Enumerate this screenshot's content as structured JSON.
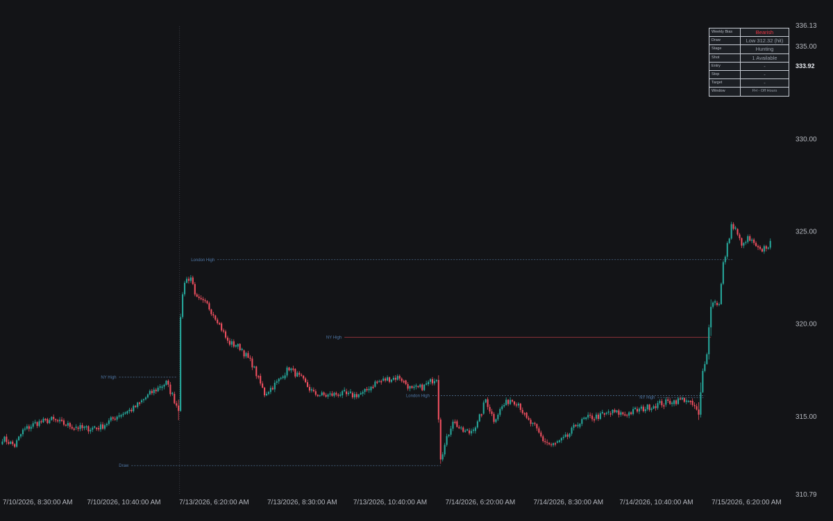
{
  "chart_data": {
    "type": "candlestick",
    "y_axis": {
      "range": [
        310.79,
        336.13
      ],
      "tick_labels": [
        {
          "value": 336.13,
          "label": "336.13"
        },
        {
          "value": 335.0,
          "label": "335.00"
        },
        {
          "value": 330.0,
          "label": "330.00"
        },
        {
          "value": 325.0,
          "label": "325.00"
        },
        {
          "value": 320.0,
          "label": "320.00"
        },
        {
          "value": 315.0,
          "label": "315.00"
        },
        {
          "value": 310.79,
          "label": "310.79"
        }
      ],
      "current_price": {
        "value": 333.92,
        "label": "333.92"
      }
    },
    "x_axis": {
      "tick_labels": [
        {
          "index": 0,
          "label": "7/10/2026, 8:30:00 AM"
        },
        {
          "index": 42,
          "label": "7/10/2026, 10:40:00 AM"
        },
        {
          "index": 87,
          "label": "7/13/2026, 6:20:00 AM"
        },
        {
          "index": 130,
          "label": "7/13/2026, 8:30:00 AM"
        },
        {
          "index": 172,
          "label": "7/13/2026, 10:40:00 AM"
        },
        {
          "index": 217,
          "label": "7/14/2026, 6:20:00 AM"
        },
        {
          "index": 260,
          "label": "7/14/2026, 8:30:00 AM"
        },
        {
          "index": 302,
          "label": "7/14/2026, 10:40:00 AM"
        },
        {
          "index": 347,
          "label": "7/15/2026, 6:20:00 AM"
        }
      ]
    },
    "session_marker_index": 86.5,
    "anchors": [
      {
        "i": 0,
        "p": 313.8
      },
      {
        "i": 6,
        "p": 313.4
      },
      {
        "i": 10,
        "p": 314.2
      },
      {
        "i": 16,
        "p": 314.6
      },
      {
        "i": 24,
        "p": 314.8
      },
      {
        "i": 32,
        "p": 314.5
      },
      {
        "i": 40,
        "p": 314.3
      },
      {
        "i": 48,
        "p": 314.4
      },
      {
        "i": 56,
        "p": 315.0
      },
      {
        "i": 64,
        "p": 315.4
      },
      {
        "i": 72,
        "p": 316.2
      },
      {
        "i": 80,
        "p": 316.8
      },
      {
        "i": 85,
        "p": 315.6
      },
      {
        "i": 86,
        "p": 315.4
      },
      {
        "i": 87,
        "p": 320.5
      },
      {
        "i": 89,
        "p": 322.3
      },
      {
        "i": 92,
        "p": 322.5
      },
      {
        "i": 95,
        "p": 321.3
      },
      {
        "i": 100,
        "p": 321.0
      },
      {
        "i": 105,
        "p": 320.2
      },
      {
        "i": 110,
        "p": 319.0
      },
      {
        "i": 116,
        "p": 318.7
      },
      {
        "i": 122,
        "p": 317.8
      },
      {
        "i": 128,
        "p": 316.2
      },
      {
        "i": 134,
        "p": 316.8
      },
      {
        "i": 140,
        "p": 317.6
      },
      {
        "i": 146,
        "p": 317.0
      },
      {
        "i": 152,
        "p": 316.2
      },
      {
        "i": 158,
        "p": 316.1
      },
      {
        "i": 164,
        "p": 316.2
      },
      {
        "i": 170,
        "p": 316.1
      },
      {
        "i": 176,
        "p": 316.2
      },
      {
        "i": 182,
        "p": 316.8
      },
      {
        "i": 188,
        "p": 317.0
      },
      {
        "i": 194,
        "p": 317.1
      },
      {
        "i": 200,
        "p": 316.4
      },
      {
        "i": 206,
        "p": 316.6
      },
      {
        "i": 212,
        "p": 317.1
      },
      {
        "i": 214,
        "p": 312.8
      },
      {
        "i": 216,
        "p": 313.4
      },
      {
        "i": 220,
        "p": 314.8
      },
      {
        "i": 224,
        "p": 314.2
      },
      {
        "i": 228,
        "p": 314.1
      },
      {
        "i": 232,
        "p": 314.6
      },
      {
        "i": 236,
        "p": 315.9
      },
      {
        "i": 240,
        "p": 314.8
      },
      {
        "i": 244,
        "p": 315.5
      },
      {
        "i": 248,
        "p": 315.9
      },
      {
        "i": 252,
        "p": 315.7
      },
      {
        "i": 256,
        "p": 314.8
      },
      {
        "i": 260,
        "p": 314.4
      },
      {
        "i": 264,
        "p": 313.7
      },
      {
        "i": 268,
        "p": 313.4
      },
      {
        "i": 272,
        "p": 313.6
      },
      {
        "i": 276,
        "p": 313.9
      },
      {
        "i": 280,
        "p": 314.5
      },
      {
        "i": 286,
        "p": 314.9
      },
      {
        "i": 292,
        "p": 315.0
      },
      {
        "i": 298,
        "p": 315.2
      },
      {
        "i": 304,
        "p": 315.1
      },
      {
        "i": 310,
        "p": 315.3
      },
      {
        "i": 316,
        "p": 315.5
      },
      {
        "i": 322,
        "p": 315.7
      },
      {
        "i": 328,
        "p": 315.8
      },
      {
        "i": 333,
        "p": 315.9
      },
      {
        "i": 338,
        "p": 315.5
      },
      {
        "i": 340,
        "p": 315.0
      },
      {
        "i": 342,
        "p": 317.4
      },
      {
        "i": 344,
        "p": 318.5
      },
      {
        "i": 346,
        "p": 321.0
      },
      {
        "i": 348,
        "p": 321.2
      },
      {
        "i": 350,
        "p": 321.0
      },
      {
        "i": 352,
        "p": 323.2
      },
      {
        "i": 354,
        "p": 324.2
      },
      {
        "i": 356,
        "p": 325.3
      },
      {
        "i": 358,
        "p": 325.0
      },
      {
        "i": 360,
        "p": 324.5
      },
      {
        "i": 362,
        "p": 324.2
      },
      {
        "i": 364,
        "p": 324.6
      },
      {
        "i": 366,
        "p": 324.4
      },
      {
        "i": 368,
        "p": 324.1
      },
      {
        "i": 370,
        "p": 323.9
      },
      {
        "i": 372,
        "p": 324.1
      },
      {
        "i": 375,
        "p": 324.3
      }
    ],
    "levels": [
      {
        "name": "london-high-1",
        "label": "London High",
        "price": 323.45,
        "start_index": 105,
        "end_index": 357,
        "color": "#4f6f92",
        "style": "dotted"
      },
      {
        "name": "ny-high-1",
        "label": "NY High",
        "price": 319.25,
        "start_index": 167,
        "end_index": 346,
        "color": "#b03a42",
        "style": "solid"
      },
      {
        "name": "ny-high-2",
        "label": "NY High",
        "price": 317.1,
        "start_index": 57,
        "end_index": 85,
        "color": "#4f6f92",
        "style": "dotted"
      },
      {
        "name": "london-high-2",
        "label": "London High",
        "price": 316.1,
        "start_index": 210,
        "end_index": 343,
        "color": "#4f6f92",
        "style": "dotted"
      },
      {
        "name": "ny-high-3",
        "label": "NY High",
        "price": 316.0,
        "start_index": 320,
        "end_index": 343,
        "color": "#4f6f92",
        "style": "dotted"
      },
      {
        "name": "draw",
        "label": "Draw",
        "price": 312.32,
        "start_index": 63,
        "end_index": 214,
        "color": "#4f6f92",
        "style": "dotted"
      }
    ],
    "colors": {
      "up": "#26a69a",
      "down": "#ef4f5f",
      "background": "#131417",
      "grid": "#2a2d33"
    }
  },
  "info_table": {
    "rows": [
      {
        "key": "Weekly Bias",
        "value": "Bearish",
        "style": "bear"
      },
      {
        "key": "Draw",
        "value": "Low 312.32 (hit)",
        "style": ""
      },
      {
        "key": "Stage",
        "value": "Hunting",
        "style": ""
      },
      {
        "key": "Shot",
        "value": "1 Available",
        "style": ""
      },
      {
        "key": "Entry",
        "value": "-",
        "style": ""
      },
      {
        "key": "Stop",
        "value": "-",
        "style": ""
      },
      {
        "key": "Target",
        "value": "-",
        "style": ""
      },
      {
        "key": "Window",
        "value": "FH - Off Hours",
        "style": "small"
      }
    ]
  }
}
